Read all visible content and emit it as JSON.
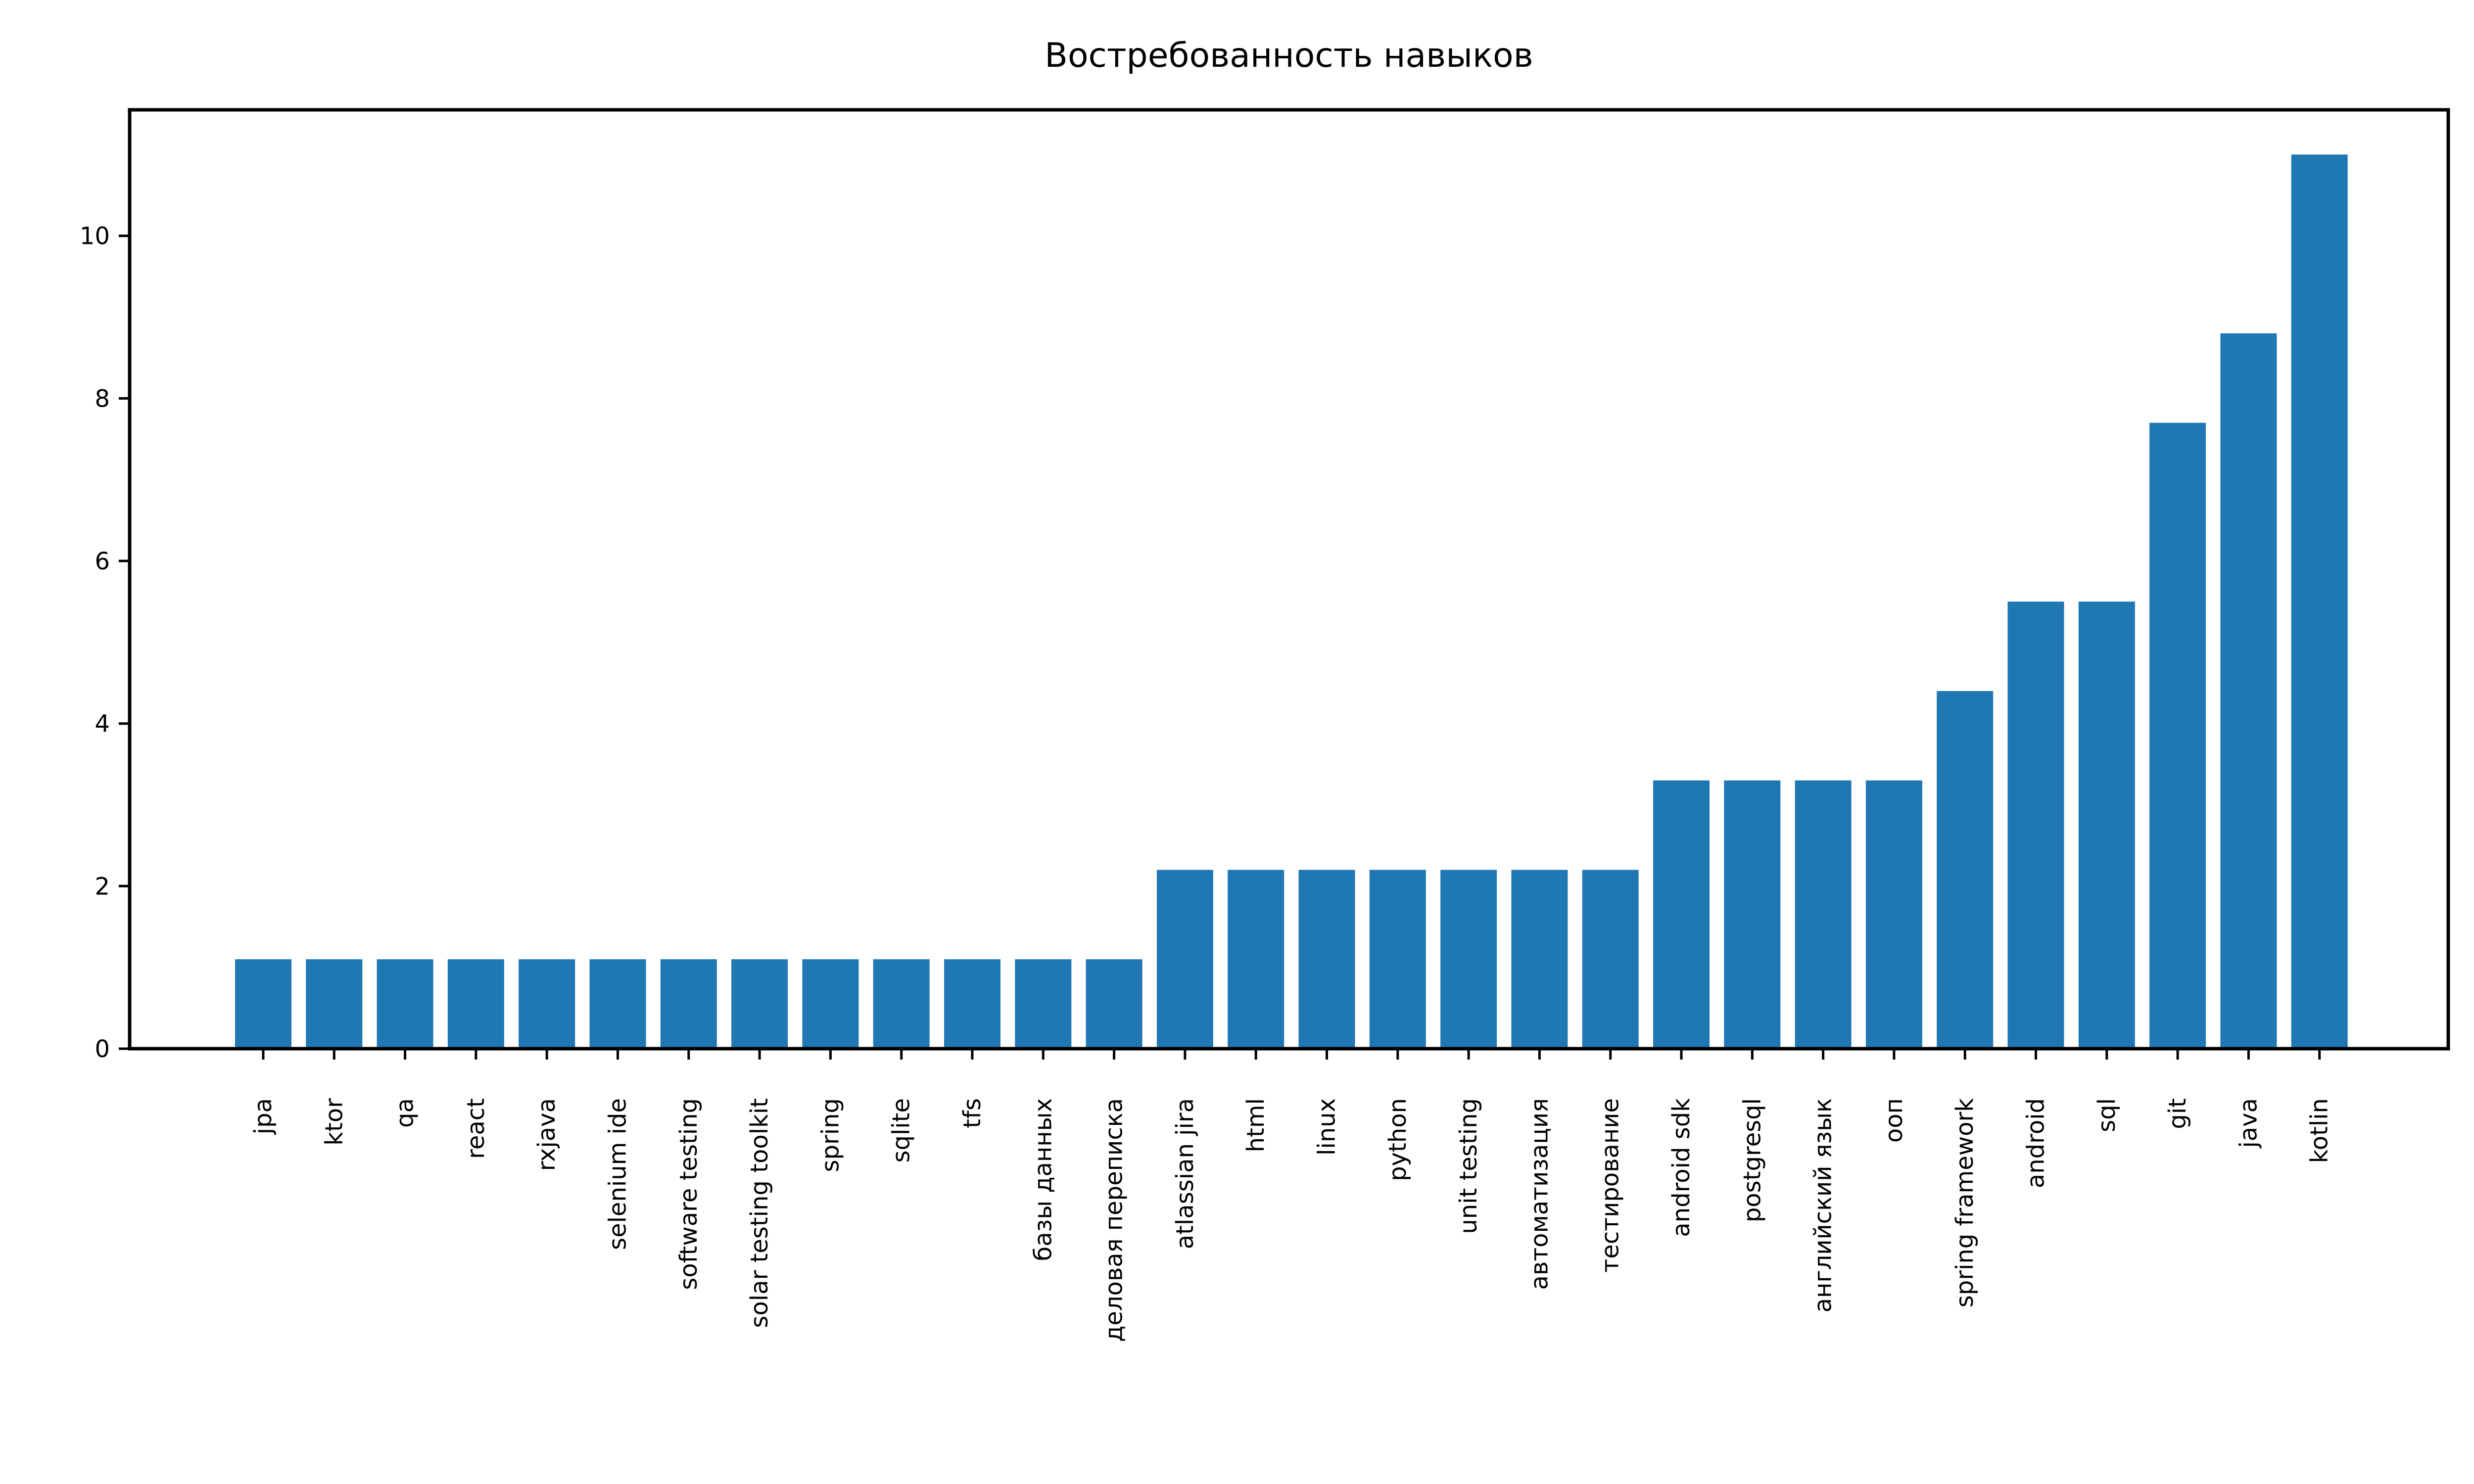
{
  "chart_data": {
    "type": "bar",
    "title": "Востребованность навыков",
    "xlabel": "",
    "ylabel": "",
    "ylim": [
      0,
      11.55
    ],
    "yticks": [
      0,
      2,
      4,
      6,
      8,
      10
    ],
    "grid": false,
    "bar_color": "#1f77b4",
    "categories": [
      "jpa",
      "ktor",
      "qa",
      "react",
      "rxjava",
      "selenium ide",
      "software testing",
      "solar testing toolkit",
      "spring",
      "sqlite",
      "tfs",
      "базы данных",
      "деловая переписка",
      "atlassian jira",
      "html",
      "linux",
      "python",
      "unit testing",
      "автоматизация",
      "тестирование",
      "android sdk",
      "postgresql",
      "английский язык",
      "ооп",
      "spring framework",
      "android",
      "sql",
      "git",
      "java",
      "kotlin"
    ],
    "values": [
      1.1,
      1.1,
      1.1,
      1.1,
      1.1,
      1.1,
      1.1,
      1.1,
      1.1,
      1.1,
      1.1,
      1.1,
      1.1,
      2.2,
      2.2,
      2.2,
      2.2,
      2.2,
      2.2,
      2.2,
      3.3,
      3.3,
      3.3,
      3.3,
      4.4,
      5.5,
      5.5,
      7.7,
      8.8,
      11.0
    ]
  }
}
